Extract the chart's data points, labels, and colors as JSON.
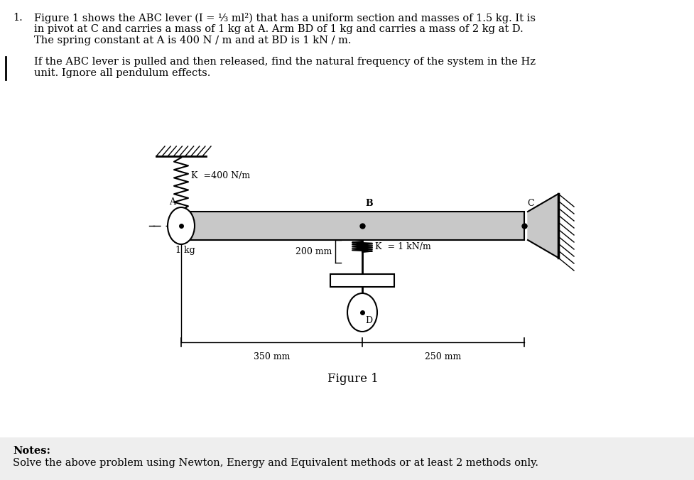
{
  "title_number": "1.",
  "title_text_line1": "Figure 1 shows the ABC lever (I = ⅓ ml²) that has a uniform section and masses of 1.5 kg. It is",
  "title_text_line2": "in pivot at C and carries a mass of 1 kg at A. Arm BD of 1 kg and carries a mass of 2 kg at D.",
  "title_text_line3": "The spring constant at A is 400 N / m and at BD is 1 kN / m.",
  "question_line1": "If the ABC lever is pulled and then released, find the natural frequency of the system in the Hz",
  "question_line2": "unit. Ignore all pendulum effects.",
  "figure_caption": "Figure 1",
  "notes_title": "Notes:",
  "notes_text": "Solve the above problem using Newton, Energy and Equivalent methods or at least 2 methods only.",
  "label_K1": "K  =400 N/m",
  "label_K2": "K  = 1 kN/m",
  "label_1kg": "1 kg",
  "label_A": "A",
  "label_B": "B",
  "label_C": "C",
  "label_D": "D",
  "label_350mm": "350 mm",
  "label_200mm": "200 mm",
  "label_250mm": "250 mm",
  "bg_color": "#ffffff",
  "text_color": "#000000",
  "fs_main": 10.5,
  "fs_diagram": 9,
  "fs_caption": 12
}
